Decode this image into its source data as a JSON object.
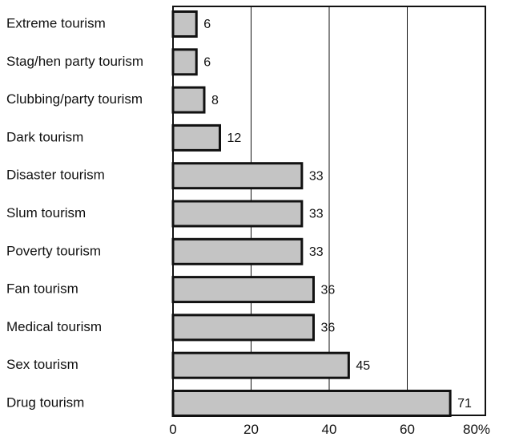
{
  "chart_data": {
    "type": "bar",
    "orientation": "horizontal",
    "categories": [
      "Extreme tourism",
      "Stag/hen party tourism",
      "Clubbing/party tourism",
      "Dark tourism",
      "Disaster tourism",
      "Slum tourism",
      "Poverty tourism",
      "Fan tourism",
      "Medical tourism",
      "Sex tourism",
      "Drug tourism"
    ],
    "values": [
      6,
      6,
      8,
      12,
      33,
      33,
      33,
      36,
      36,
      45,
      71
    ],
    "value_labels": [
      "6",
      "6",
      "8",
      "12",
      "33",
      "33",
      "33",
      "36",
      "36",
      "45",
      "71"
    ],
    "xlim": [
      0,
      80
    ],
    "xticks": [
      0,
      20,
      40,
      60,
      80
    ],
    "xtick_labels": [
      "0",
      "20",
      "40",
      "60",
      "80%"
    ],
    "title": "",
    "xlabel": "",
    "ylabel": "",
    "grid": "vertical",
    "legend": "none",
    "colors": {
      "bar_fill": "#c4c4c4",
      "bar_stroke": "#111111"
    }
  }
}
